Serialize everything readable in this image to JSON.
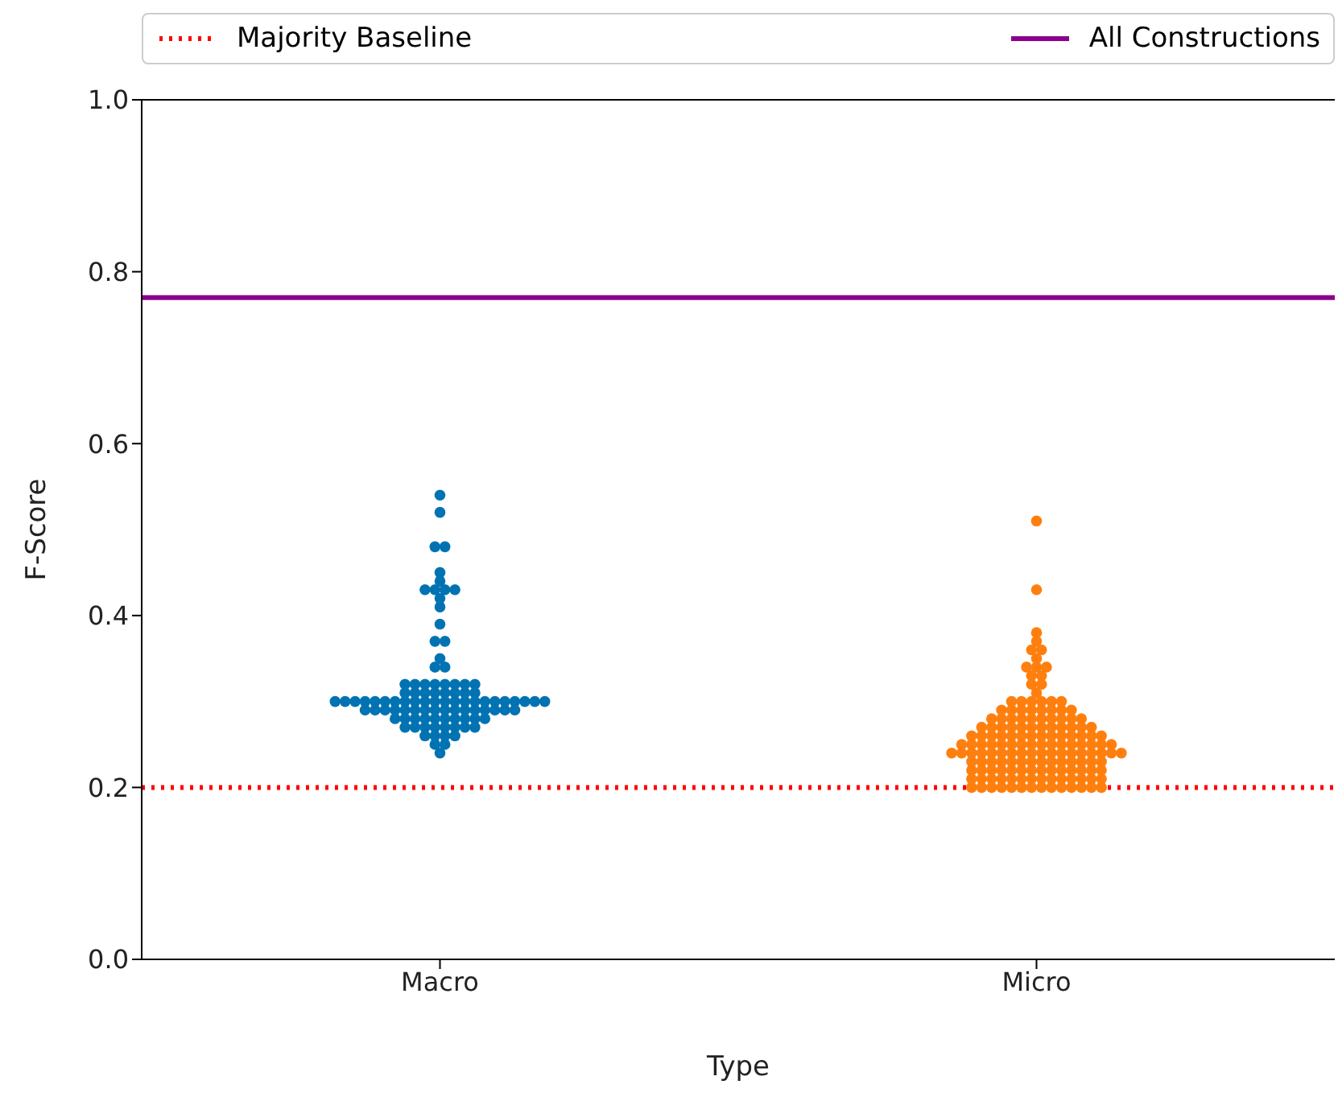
{
  "chart_data": {
    "type": "scatter",
    "xlabel": "Type",
    "ylabel": "F-Score",
    "categories": [
      "Macro",
      "Micro"
    ],
    "ylim": [
      0,
      1
    ],
    "yticks": [
      {
        "value": 0,
        "label": "0.0"
      },
      0.2,
      0.4,
      0.6,
      0.8,
      {
        "value": 1,
        "label": "1.0"
      }
    ],
    "grid": false,
    "legend": "top",
    "marker": "circle",
    "series": [
      {
        "color": "#0173b2",
        "x": [
          "Macro",
          "Macro",
          "Macro",
          "Macro",
          "Macro",
          "Macro",
          "Macro",
          "Macro",
          "Macro",
          "Macro",
          "Macro",
          "Macro",
          "Macro",
          "Macro",
          "Macro",
          "Macro",
          "Macro",
          "Macro",
          "Macro",
          "Macro",
          "Macro",
          "Macro",
          "Macro",
          "Macro",
          "Macro",
          "Macro",
          "Macro",
          "Macro",
          "Macro",
          "Macro",
          "Macro",
          "Macro",
          "Macro",
          "Macro",
          "Macro",
          "Macro",
          "Macro",
          "Macro",
          "Macro",
          "Macro",
          "Macro",
          "Macro",
          "Macro",
          "Macro",
          "Macro",
          "Macro",
          "Macro",
          "Macro",
          "Macro",
          "Macro",
          "Macro",
          "Macro",
          "Macro",
          "Macro",
          "Macro",
          "Macro",
          "Macro",
          "Macro",
          "Macro",
          "Macro",
          "Macro",
          "Macro",
          "Macro",
          "Macro",
          "Macro",
          "Macro",
          "Macro",
          "Macro",
          "Macro",
          "Macro",
          "Macro",
          "Macro",
          "Macro",
          "Macro",
          "Macro",
          "Macro",
          "Macro",
          "Macro",
          "Macro",
          "Macro",
          "Macro",
          "Macro",
          "Macro",
          "Macro",
          "Macro",
          "Macro",
          "Macro",
          "Macro",
          "Macro",
          "Macro",
          "Macro",
          "Macro",
          "Macro",
          "Macro",
          "Macro",
          "Macro",
          "Macro"
        ],
        "values": [
          0.54,
          0.52,
          0.48,
          0.48,
          0.45,
          0.44,
          0.43,
          0.43,
          0.43,
          0.43,
          0.42,
          0.41,
          0.39,
          0.37,
          0.37,
          0.35,
          0.34,
          0.34,
          0.32,
          0.32,
          0.32,
          0.32,
          0.32,
          0.32,
          0.32,
          0.32,
          0.31,
          0.31,
          0.31,
          0.31,
          0.31,
          0.31,
          0.31,
          0.31,
          0.3,
          0.3,
          0.3,
          0.3,
          0.3,
          0.3,
          0.3,
          0.3,
          0.3,
          0.3,
          0.3,
          0.3,
          0.3,
          0.3,
          0.3,
          0.3,
          0.3,
          0.3,
          0.3,
          0.3,
          0.3,
          0.3,
          0.29,
          0.29,
          0.29,
          0.29,
          0.29,
          0.29,
          0.29,
          0.29,
          0.29,
          0.29,
          0.29,
          0.29,
          0.29,
          0.29,
          0.29,
          0.29,
          0.28,
          0.28,
          0.28,
          0.28,
          0.28,
          0.28,
          0.28,
          0.28,
          0.28,
          0.28,
          0.27,
          0.27,
          0.27,
          0.27,
          0.27,
          0.27,
          0.27,
          0.27,
          0.26,
          0.26,
          0.26,
          0.26,
          0.25,
          0.25,
          0.24
        ]
      },
      {
        "color": "#ff7f0e",
        "x": [
          "Micro",
          "Micro",
          "Micro",
          "Micro",
          "Micro",
          "Micro",
          "Micro",
          "Micro",
          "Micro",
          "Micro",
          "Micro",
          "Micro",
          "Micro",
          "Micro",
          "Micro",
          "Micro",
          "Micro",
          "Micro",
          "Micro",
          "Micro",
          "Micro",
          "Micro",
          "Micro",
          "Micro",
          "Micro",
          "Micro",
          "Micro",
          "Micro",
          "Micro",
          "Micro",
          "Micro",
          "Micro",
          "Micro",
          "Micro",
          "Micro",
          "Micro",
          "Micro",
          "Micro",
          "Micro",
          "Micro",
          "Micro",
          "Micro",
          "Micro",
          "Micro",
          "Micro",
          "Micro",
          "Micro",
          "Micro",
          "Micro",
          "Micro",
          "Micro",
          "Micro",
          "Micro",
          "Micro",
          "Micro",
          "Micro",
          "Micro",
          "Micro",
          "Micro",
          "Micro",
          "Micro",
          "Micro",
          "Micro",
          "Micro",
          "Micro",
          "Micro",
          "Micro",
          "Micro",
          "Micro",
          "Micro",
          "Micro",
          "Micro",
          "Micro",
          "Micro",
          "Micro",
          "Micro",
          "Micro",
          "Micro",
          "Micro",
          "Micro",
          "Micro",
          "Micro",
          "Micro",
          "Micro",
          "Micro",
          "Micro",
          "Micro",
          "Micro",
          "Micro",
          "Micro",
          "Micro",
          "Micro",
          "Micro",
          "Micro",
          "Micro",
          "Micro",
          "Micro",
          "Micro",
          "Micro",
          "Micro",
          "Micro",
          "Micro",
          "Micro",
          "Micro",
          "Micro",
          "Micro",
          "Micro",
          "Micro",
          "Micro",
          "Micro",
          "Micro",
          "Micro",
          "Micro",
          "Micro",
          "Micro",
          "Micro",
          "Micro",
          "Micro",
          "Micro",
          "Micro",
          "Micro",
          "Micro",
          "Micro",
          "Micro",
          "Micro",
          "Micro",
          "Micro",
          "Micro",
          "Micro",
          "Micro",
          "Micro",
          "Micro",
          "Micro",
          "Micro",
          "Micro",
          "Micro",
          "Micro",
          "Micro",
          "Micro",
          "Micro",
          "Micro",
          "Micro",
          "Micro",
          "Micro",
          "Micro",
          "Micro",
          "Micro",
          "Micro",
          "Micro",
          "Micro",
          "Micro",
          "Micro",
          "Micro",
          "Micro",
          "Micro"
        ],
        "values": [
          0.51,
          0.43,
          0.38,
          0.37,
          0.36,
          0.36,
          0.35,
          0.34,
          0.34,
          0.34,
          0.33,
          0.33,
          0.32,
          0.32,
          0.31,
          0.3,
          0.3,
          0.3,
          0.3,
          0.3,
          0.3,
          0.29,
          0.29,
          0.29,
          0.29,
          0.29,
          0.29,
          0.29,
          0.29,
          0.28,
          0.28,
          0.28,
          0.28,
          0.28,
          0.28,
          0.28,
          0.28,
          0.28,
          0.28,
          0.27,
          0.27,
          0.27,
          0.27,
          0.27,
          0.27,
          0.27,
          0.27,
          0.27,
          0.27,
          0.27,
          0.27,
          0.26,
          0.26,
          0.26,
          0.26,
          0.26,
          0.26,
          0.26,
          0.26,
          0.26,
          0.26,
          0.26,
          0.26,
          0.26,
          0.26,
          0.25,
          0.25,
          0.25,
          0.25,
          0.25,
          0.25,
          0.25,
          0.25,
          0.25,
          0.25,
          0.25,
          0.25,
          0.25,
          0.25,
          0.25,
          0.25,
          0.24,
          0.24,
          0.24,
          0.24,
          0.24,
          0.24,
          0.24,
          0.24,
          0.24,
          0.24,
          0.24,
          0.24,
          0.24,
          0.24,
          0.24,
          0.24,
          0.24,
          0.24,
          0.23,
          0.23,
          0.23,
          0.23,
          0.23,
          0.23,
          0.23,
          0.23,
          0.23,
          0.23,
          0.23,
          0.23,
          0.23,
          0.23,
          0.22,
          0.22,
          0.22,
          0.22,
          0.22,
          0.22,
          0.22,
          0.22,
          0.22,
          0.22,
          0.22,
          0.22,
          0.22,
          0.22,
          0.21,
          0.21,
          0.21,
          0.21,
          0.21,
          0.21,
          0.21,
          0.21,
          0.21,
          0.21,
          0.21,
          0.21,
          0.21,
          0.21,
          0.2,
          0.2,
          0.2,
          0.2,
          0.2,
          0.2,
          0.2,
          0.2,
          0.2,
          0.2,
          0.2,
          0.2,
          0.2,
          0.2
        ]
      }
    ],
    "ref_lines": [
      {
        "axis": "y",
        "value": 0.2,
        "label": "Majority Baseline",
        "color": "#ff0000",
        "line_style": "dotted"
      },
      {
        "axis": "y",
        "value": 0.77,
        "label": "All Constructions",
        "color": "#8b008b",
        "line_style": "solid"
      }
    ]
  }
}
